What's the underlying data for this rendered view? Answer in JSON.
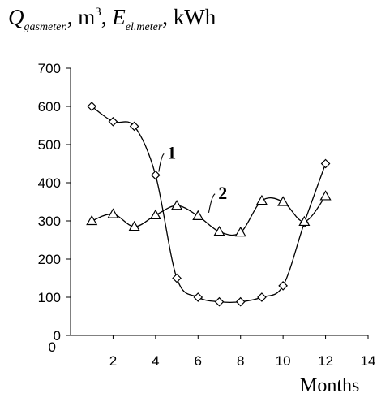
{
  "chart_data": {
    "type": "line",
    "ylabel": {
      "q_symbol": "Q",
      "q_sub": "gasmeter.",
      "unit1_base": ", m",
      "unit1_sup": "3",
      "unit1_tail": ",",
      "e_symbol": "E",
      "e_sub": "el.meter",
      "unit2": ", kWh"
    },
    "xlabel": "Months",
    "xlim": [
      0,
      14
    ],
    "ylim": [
      0,
      700
    ],
    "x_ticks": [
      2,
      4,
      6,
      8,
      10,
      12,
      14
    ],
    "y_ticks": [
      0,
      100,
      200,
      300,
      400,
      500,
      600,
      700
    ],
    "grid": false,
    "series": [
      {
        "name": "1",
        "marker": "diamond",
        "x": [
          1,
          2,
          3,
          4,
          5,
          6,
          7,
          8,
          9,
          10,
          11,
          12
        ],
        "y": [
          600,
          560,
          548,
          420,
          150,
          100,
          88,
          88,
          100,
          130,
          295,
          450
        ]
      },
      {
        "name": "2",
        "marker": "triangle",
        "x": [
          1,
          2,
          3,
          4,
          5,
          6,
          7,
          8,
          9,
          10,
          11,
          12
        ],
        "y": [
          300,
          318,
          285,
          315,
          340,
          313,
          272,
          270,
          353,
          350,
          298,
          365
        ]
      }
    ],
    "annotations": [
      {
        "text": "1",
        "series": 0,
        "anchor_x": 4,
        "anchor_y": 420,
        "label_x": 4.55,
        "label_y": 480
      },
      {
        "text": "2",
        "series": 1,
        "anchor_x": 6.35,
        "anchor_y": 313,
        "label_x": 6.95,
        "label_y": 375
      }
    ]
  }
}
